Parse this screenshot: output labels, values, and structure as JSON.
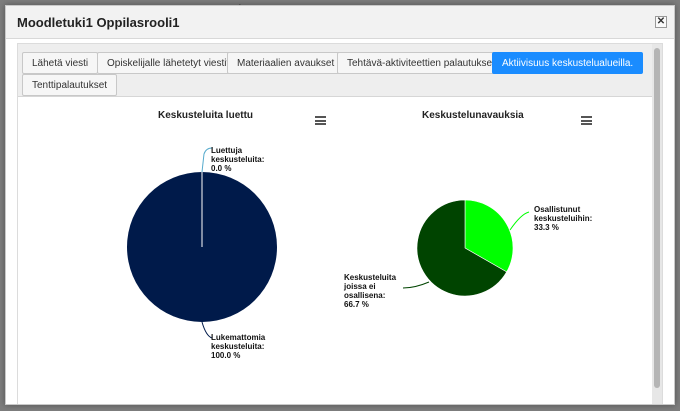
{
  "dialog": {
    "title": "Moodletuki1 Oppilasrooli1",
    "close_label": "✕"
  },
  "tabs": [
    {
      "label": "Lähetä viesti",
      "active": false
    },
    {
      "label": "Opiskelijalle lähetetyt viestit",
      "active": false
    },
    {
      "label": "Materiaalien avaukset",
      "active": false
    },
    {
      "label": "Tehtävä-aktiviteettien palautukset",
      "active": false
    },
    {
      "label": "Aktiivisuus keskustelualueilla.",
      "active": true
    },
    {
      "label": "Tenttipalautukset",
      "active": false
    }
  ],
  "chart_data": [
    {
      "type": "pie",
      "title": "Keskusteluita luettu",
      "slices": [
        {
          "label": "Luettuja keskusteluita:",
          "value": 0.0,
          "display": "0.0 %",
          "color": "#001a4a"
        },
        {
          "label": "Lukemattomia keskusteluita:",
          "value": 100.0,
          "display": "100.0 %",
          "color": "#001a4a"
        }
      ]
    },
    {
      "type": "pie",
      "title": "Keskustelunavauksia",
      "slices": [
        {
          "label": "Osallistunut keskusteluihin:",
          "value": 33.3,
          "display": "33.3 %",
          "color": "#00ff00"
        },
        {
          "label": "Keskusteluita joissa ei osallisena:",
          "value": 66.7,
          "display": "66.7 %",
          "color": "#004400"
        }
      ]
    }
  ]
}
